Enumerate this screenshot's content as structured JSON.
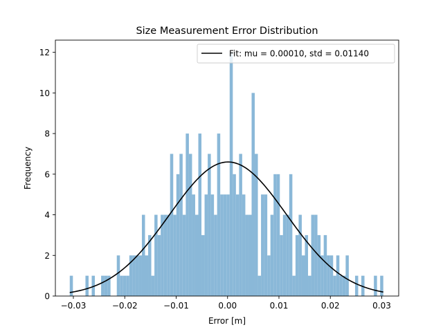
{
  "chart_data": {
    "type": "bar",
    "title": "Size Measurement Error Distribution",
    "xlabel": "Error [m]",
    "ylabel": "Frequency",
    "xlim": [
      -0.0335,
      0.0333
    ],
    "ylim": [
      0,
      12.6
    ],
    "x_ticks": [
      -0.03,
      -0.02,
      -0.01,
      0.0,
      0.01,
      0.02,
      0.03
    ],
    "x_tick_labels": [
      "−0.03",
      "−0.02",
      "−0.01",
      "0.00",
      "0.01",
      "0.02",
      "0.03"
    ],
    "y_ticks": [
      0,
      2,
      4,
      6,
      8,
      10,
      12
    ],
    "y_tick_labels": [
      "0",
      "2",
      "4",
      "6",
      "8",
      "10",
      "12"
    ],
    "grid": false,
    "histogram": {
      "bin_start": -0.0307,
      "bin_end": 0.0303,
      "color": "#8ab8d8",
      "counts": [
        1,
        0,
        0,
        0,
        0,
        1,
        0,
        1,
        0,
        0,
        1,
        1,
        1,
        0,
        0,
        2,
        1,
        1,
        1,
        2,
        2,
        2,
        2,
        4,
        2,
        3,
        1,
        4,
        3,
        4,
        4,
        4,
        7,
        4,
        6,
        7,
        4,
        8,
        7,
        5,
        4,
        8,
        3,
        5,
        7,
        5,
        4,
        8,
        5,
        5,
        5,
        12,
        6,
        5,
        7,
        5,
        4,
        4,
        10,
        7,
        1,
        5,
        5,
        2,
        4,
        6,
        6,
        3,
        4,
        4,
        6,
        1,
        3,
        4,
        2,
        3,
        1,
        4,
        4,
        3,
        2,
        3,
        2,
        2,
        1,
        2,
        1,
        1,
        2,
        0,
        0,
        1,
        0,
        1,
        0,
        0,
        0,
        1,
        0,
        1
      ]
    },
    "fit": {
      "label": "Fit: mu = 0.00010, std = 0.01140",
      "mu": 0.0001,
      "std": 0.0114,
      "peak": 6.6,
      "x_from": -0.0307,
      "x_to": 0.0303,
      "color": "#000000"
    },
    "legend_position": "top-right"
  }
}
